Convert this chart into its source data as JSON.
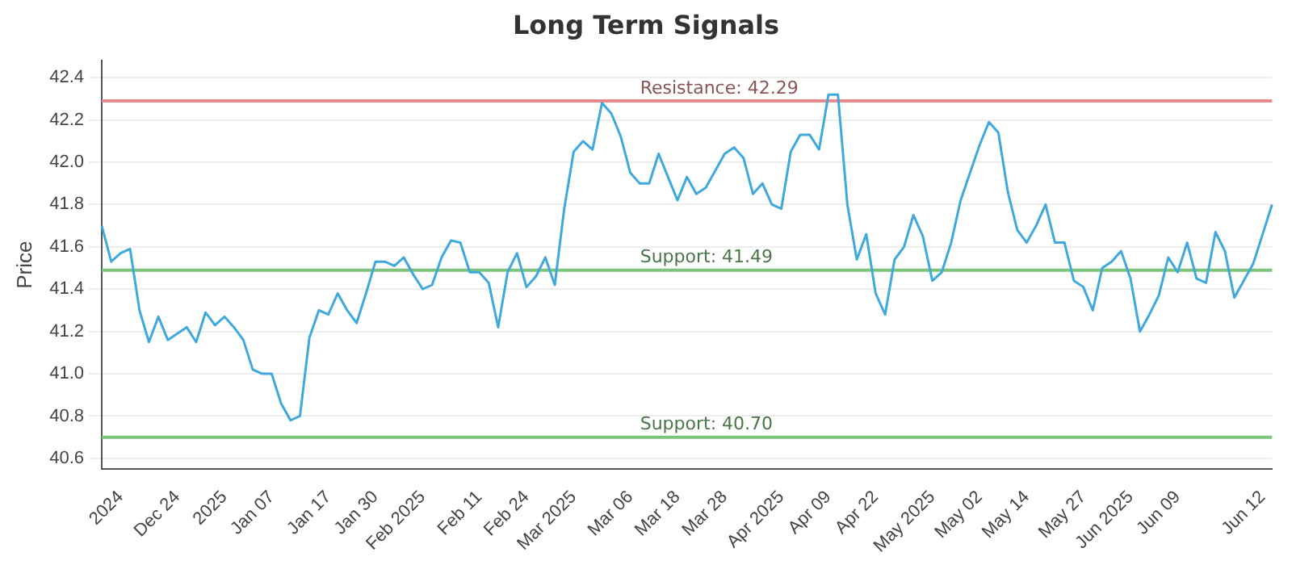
{
  "chart_data": {
    "type": "line",
    "title": "Long Term Signals",
    "ylabel": "Price",
    "categories": [
      null,
      null,
      "2024",
      null,
      null,
      null,
      null,
      null,
      "Dec 24",
      null,
      null,
      null,
      null,
      "2025",
      null,
      null,
      null,
      null,
      "Jan 07",
      null,
      null,
      null,
      null,
      null,
      "Jan 17",
      null,
      null,
      null,
      null,
      "Jan 30",
      null,
      null,
      null,
      null,
      "Feb 2025",
      null,
      null,
      null,
      null,
      null,
      "Feb 11",
      null,
      null,
      null,
      null,
      "Feb 24",
      null,
      null,
      null,
      null,
      "Mar 2025",
      null,
      null,
      null,
      null,
      null,
      "Mar 06",
      null,
      null,
      null,
      null,
      "Mar 18",
      null,
      null,
      null,
      null,
      "Mar 28",
      null,
      null,
      null,
      null,
      null,
      "Apr 2025",
      null,
      null,
      null,
      null,
      "Apr 09",
      null,
      null,
      null,
      null,
      "Apr 22",
      null,
      null,
      null,
      null,
      null,
      "May 2025",
      null,
      null,
      null,
      null,
      "May 02",
      null,
      null,
      null,
      null,
      "May 14",
      null,
      null,
      null,
      null,
      null,
      "May 27",
      null,
      null,
      null,
      null,
      "Jun 2025",
      null,
      null,
      null,
      null,
      "Jun 09",
      null,
      null,
      null,
      null,
      null,
      null,
      null,
      null,
      "Jun 12",
      null
    ],
    "series": [
      {
        "color": "#3fa9dd",
        "values": [
          41.7,
          41.53,
          41.57,
          41.59,
          41.3,
          41.15,
          41.27,
          41.16,
          41.19,
          41.22,
          41.15,
          41.29,
          41.23,
          41.27,
          41.22,
          41.16,
          41.02,
          41.0,
          41.0,
          40.86,
          40.78,
          40.8,
          41.17,
          41.3,
          41.28,
          41.38,
          41.3,
          41.24,
          41.38,
          41.53,
          41.53,
          41.51,
          41.55,
          41.47,
          41.4,
          41.42,
          41.55,
          41.63,
          41.62,
          41.48,
          41.48,
          41.43,
          41.22,
          41.48,
          41.57,
          41.41,
          41.46,
          41.55,
          41.42,
          41.78,
          42.05,
          42.1,
          42.06,
          42.28,
          42.23,
          42.12,
          41.95,
          41.9,
          41.9,
          42.04,
          41.93,
          41.82,
          41.93,
          41.85,
          41.88,
          41.96,
          42.04,
          42.07,
          42.02,
          41.85,
          41.9,
          41.8,
          41.78,
          42.05,
          42.13,
          42.13,
          42.06,
          42.32,
          42.32,
          41.8,
          41.54,
          41.66,
          41.38,
          41.28,
          41.54,
          41.6,
          41.75,
          41.65,
          41.44,
          41.48,
          41.62,
          41.82,
          41.95,
          42.08,
          42.19,
          42.14,
          41.86,
          41.68,
          41.62,
          41.7,
          41.8,
          41.62,
          41.62,
          41.44,
          41.41,
          41.3,
          41.5,
          41.53,
          41.58,
          41.45,
          41.2,
          41.28,
          41.37,
          41.55,
          41.48,
          41.62,
          41.45,
          41.43,
          41.67,
          41.58,
          41.36,
          41.44,
          41.52,
          41.66,
          41.8
        ]
      }
    ],
    "ylim": [
      40.55,
      42.48
    ],
    "yticks": [
      40.6,
      40.8,
      {
        "value": 41.0,
        "label": "41.0"
      },
      41.2,
      41.4,
      41.6,
      41.8,
      {
        "value": 42.0,
        "label": "42.0"
      },
      42.2,
      42.4
    ],
    "ref_lines": [
      {
        "axis": "y",
        "value": 42.29,
        "label": "Resistance: 42.29",
        "color": "#e88a8a"
      },
      {
        "axis": "y",
        "value": 41.49,
        "label": "Support: 41.49",
        "color": "#7cc47c"
      },
      {
        "axis": "y",
        "value": 40.7,
        "label": "Support: 40.70",
        "color": "#7cc47c"
      }
    ],
    "grid": "y",
    "legend": false,
    "marker": "none",
    "line_style": "solid"
  }
}
